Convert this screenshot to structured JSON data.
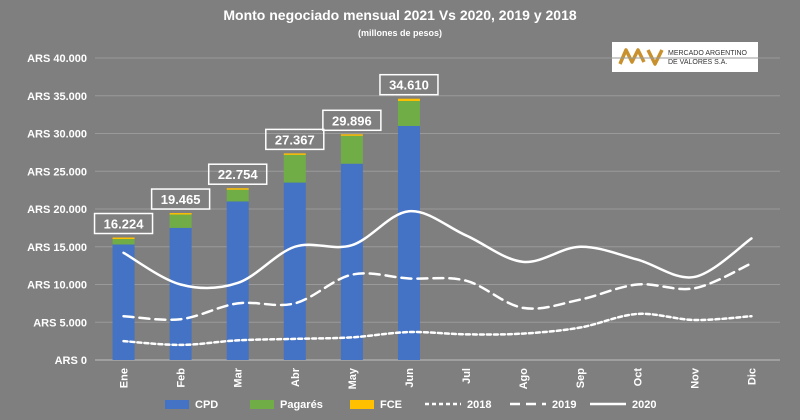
{
  "chart_data": {
    "type": "bar",
    "title": "Monto negociado mensual 2021 Vs 2020, 2019 y 2018",
    "subtitle": "(millones de pesos)",
    "xlabel": "",
    "ylabel": "",
    "ylim": [
      0,
      40000
    ],
    "yticks": [
      0,
      5000,
      10000,
      15000,
      20000,
      25000,
      30000,
      35000,
      40000
    ],
    "ytick_labels": [
      "ARS 0",
      "ARS 5.000",
      "ARS 10.000",
      "ARS 15.000",
      "ARS 20.000",
      "ARS 25.000",
      "ARS 30.000",
      "ARS 35.000",
      "ARS 40.000"
    ],
    "categories": [
      "Ene",
      "Feb",
      "Mar",
      "Abr",
      "May",
      "Jun",
      "Jul",
      "Ago",
      "Sep",
      "Oct",
      "Nov",
      "Dic"
    ],
    "stacked_series": [
      {
        "name": "CPD",
        "color": "#4472c4",
        "values": [
          15300,
          17500,
          21000,
          23500,
          26000,
          31000
        ]
      },
      {
        "name": "Pagarés",
        "color": "#70ad47",
        "values": [
          724,
          1765,
          1554,
          3667,
          3696,
          3310
        ]
      },
      {
        "name": "FCE",
        "color": "#ffc000",
        "values": [
          200,
          200,
          200,
          200,
          200,
          300
        ]
      }
    ],
    "totals": [
      "16.224",
      "19.465",
      "22.754",
      "27.367",
      "29.896",
      "34.610"
    ],
    "line_series": [
      {
        "name": "2018",
        "style": "dotted",
        "values": [
          2500,
          2000,
          2600,
          2800,
          3000,
          3700,
          3400,
          3500,
          4300,
          6100,
          5300,
          5800
        ]
      },
      {
        "name": "2019",
        "style": "dashed",
        "values": [
          5800,
          5400,
          7500,
          7500,
          11300,
          10800,
          10500,
          6900,
          8000,
          10000,
          9500,
          12800
        ]
      },
      {
        "name": "2020",
        "style": "solid",
        "values": [
          14200,
          10000,
          10200,
          15000,
          15200,
          19700,
          16500,
          13000,
          15000,
          13300,
          11000,
          16100
        ]
      }
    ],
    "grid": true,
    "legend_position": "bottom"
  },
  "logo": {
    "line1": "MERCADO ARGENTINO",
    "line2": "DE VALORES S.A.",
    "color": "#c8912d"
  },
  "colors": {
    "background": "#7f7f7f",
    "grid": "#9a9a9a",
    "lines": "#ffffff"
  }
}
